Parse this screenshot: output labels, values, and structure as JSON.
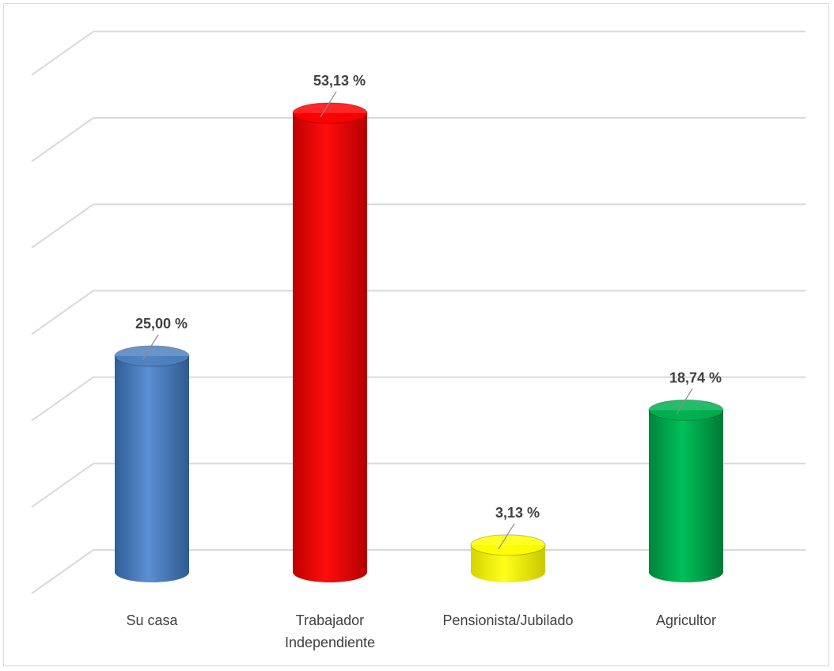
{
  "chart_data": {
    "type": "bar",
    "style": "3d-cylinder",
    "categories": [
      "Su casa",
      "Trabajador Independiente",
      "Pensionista/Jubilado",
      "Agricultor"
    ],
    "category_lines": [
      [
        "Su casa"
      ],
      [
        "Trabajador",
        "Independiente"
      ],
      [
        "Pensionista/Jubilado"
      ],
      [
        "Agricultor"
      ]
    ],
    "values": [
      25.0,
      53.13,
      3.13,
      18.74
    ],
    "data_labels": [
      "25,00 %",
      "53,13 %",
      "3,13 %",
      "18,74 %"
    ],
    "colors": [
      "#4f81bd",
      "#ff0000",
      "#ffff00",
      "#00b050"
    ],
    "ylim": [
      0,
      60
    ],
    "grid": true,
    "legend": "none",
    "title": "",
    "xlabel": "",
    "ylabel": ""
  }
}
